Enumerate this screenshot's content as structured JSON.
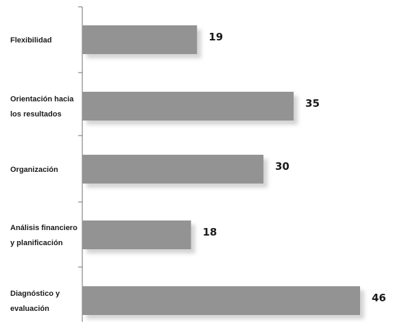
{
  "chart_data": {
    "type": "bar",
    "orientation": "horizontal",
    "categories": [
      [
        "Flexibilidad"
      ],
      [
        "Orientación hacia",
        "los resultados"
      ],
      [
        "Organización"
      ],
      [
        "Análisis financiero",
        "y planificación"
      ],
      [
        "Diagnóstico y",
        "evaluación"
      ]
    ],
    "values": [
      19,
      35,
      30,
      18,
      46
    ],
    "xlim": [
      0,
      46
    ],
    "title": "",
    "xlabel": "",
    "ylabel": "",
    "grid": false,
    "legend": "none",
    "bar_color": "#939393",
    "shadow_color": "#d4d4d4"
  }
}
